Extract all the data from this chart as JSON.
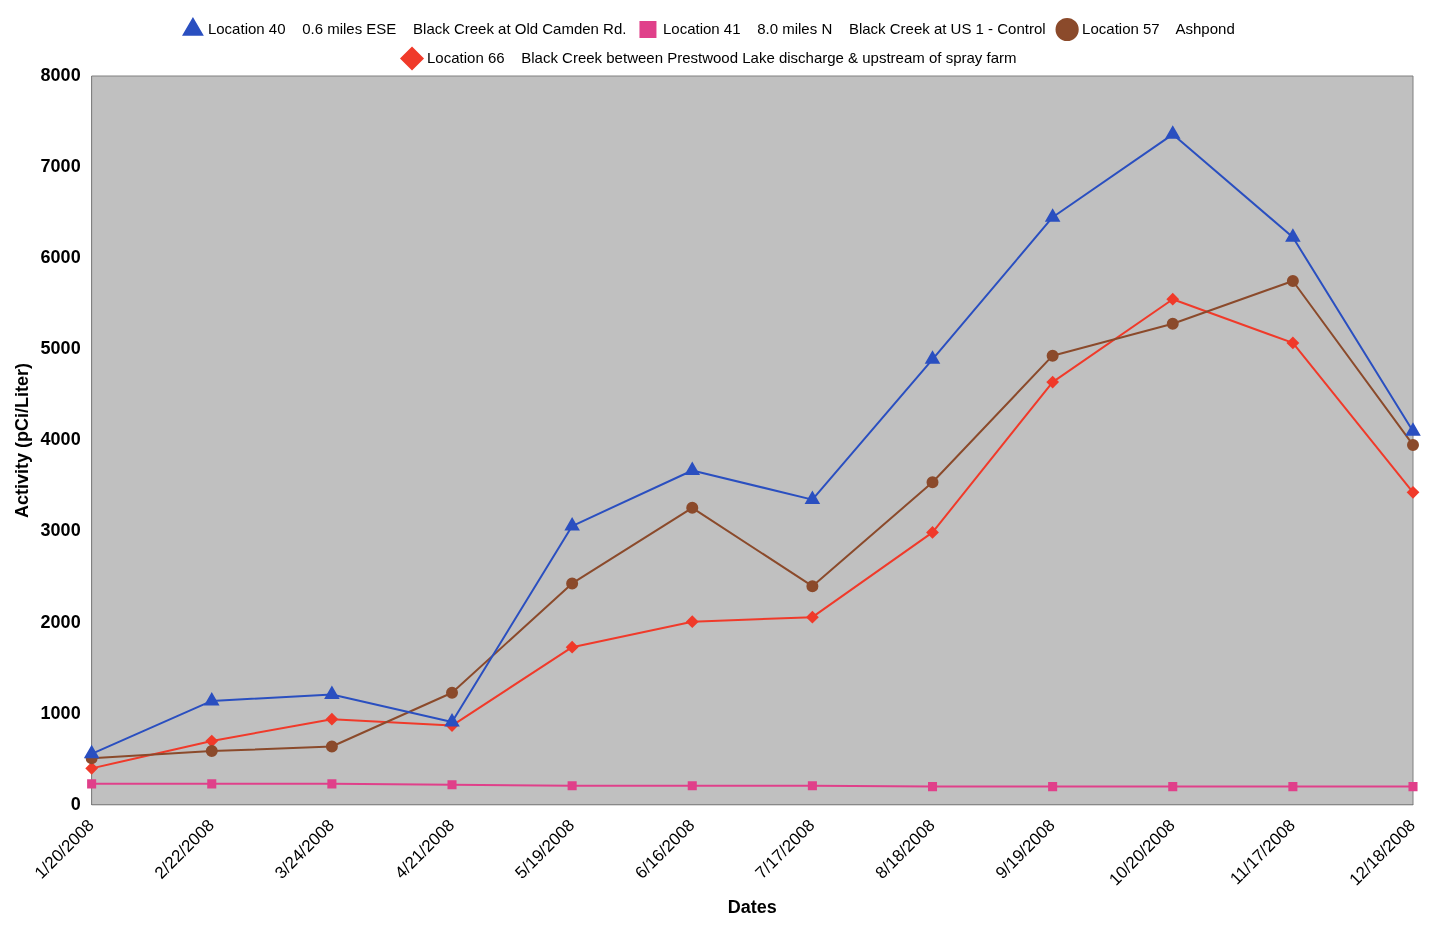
{
  "chart_data": {
    "type": "line",
    "xlabel": "Dates",
    "ylabel": "Activity (pCi/Liter)",
    "categories": [
      "1/20/2008",
      "2/22/2008",
      "3/24/2008",
      "4/21/2008",
      "5/19/2008",
      "6/16/2008",
      "7/17/2008",
      "8/18/2008",
      "9/19/2008",
      "10/20/2008",
      "11/17/2008",
      "12/18/2008"
    ],
    "series": [
      {
        "name": "Location 41    8.0 miles N    Black Creek at US 1 - Control",
        "color": "#e0408a",
        "marker": "square",
        "values": [
          230,
          230,
          230,
          220,
          210,
          210,
          210,
          200,
          200,
          200,
          200,
          200
        ]
      },
      {
        "name": "Location 57    Ashpond",
        "color": "#8b4a2b",
        "marker": "circle",
        "values": [
          510,
          590,
          640,
          1230,
          2430,
          3260,
          2400,
          3540,
          4930,
          5280,
          5750,
          3950
        ]
      },
      {
        "name": "Location 40    0.6 miles ESE    Black Creek at Old Camden Rd.",
        "color": "#2a4fc0",
        "marker": "triangle",
        "values": [
          560,
          1140,
          1210,
          910,
          3060,
          3670,
          3350,
          4890,
          6450,
          7360,
          6230,
          4100
        ]
      },
      {
        "name": "Location 66    Black Creek between Prestwood Lake discharge & upstream of spray farm",
        "color": "#f03a2a",
        "marker": "diamond",
        "values": [
          400,
          700,
          940,
          870,
          1730,
          2010,
          2060,
          2990,
          4640,
          5550,
          5070,
          3430
        ]
      }
    ],
    "ylim": [
      0,
      8000
    ],
    "yticks": [
      0,
      1000,
      2000,
      3000,
      4000,
      5000,
      6000,
      7000,
      8000
    ],
    "grid": false,
    "legend": "top"
  }
}
